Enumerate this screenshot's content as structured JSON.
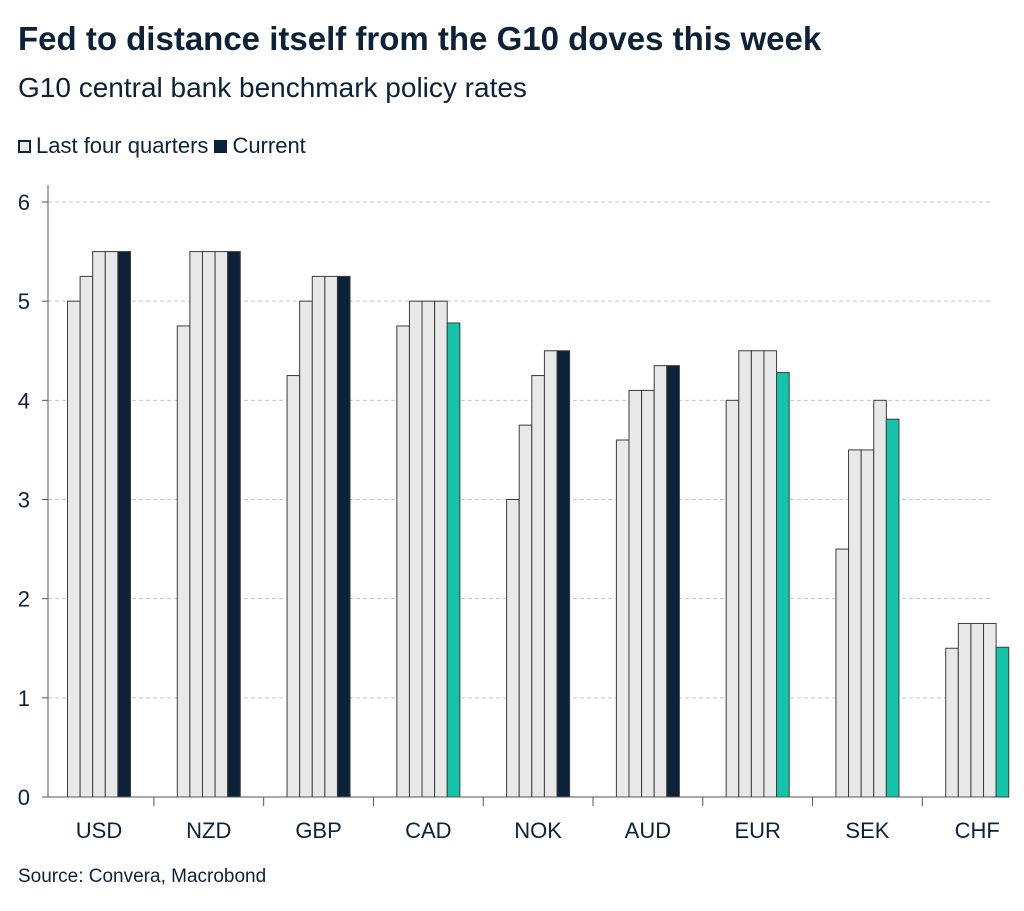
{
  "header": {
    "title": "Fed to distance itself from the G10 doves this week",
    "subtitle": "G10 central bank benchmark policy rates"
  },
  "legend": {
    "last_label": "Last four quarters",
    "current_label": "Current"
  },
  "footer": {
    "source": "Source: Convera, Macrobond"
  },
  "colors": {
    "past_fill": "#e8e8e8",
    "outline": "#3c3c3c",
    "current_dark": "#0b2239",
    "current_teal": "#14c4aa",
    "grid": "#c8c8c8",
    "text": "#0b2239"
  },
  "chart_data": {
    "type": "bar",
    "title": "Fed to distance itself from the G10 doves this week",
    "subtitle": "G10 central bank benchmark policy rates",
    "xlabel": "",
    "ylabel": "",
    "ylim": [
      0,
      6
    ],
    "yticks": [
      0,
      1,
      2,
      3,
      4,
      5,
      6
    ],
    "grid": true,
    "legend_position": "top-left",
    "categories": [
      "USD",
      "NZD",
      "GBP",
      "CAD",
      "NOK",
      "AUD",
      "EUR",
      "SEK",
      "CHF"
    ],
    "series": [
      {
        "name": "Last four quarters (Q-4)",
        "values": [
          5.0,
          4.75,
          4.25,
          4.75,
          3.0,
          3.6,
          4.0,
          2.5,
          1.5
        ]
      },
      {
        "name": "Last four quarters (Q-3)",
        "values": [
          5.25,
          5.5,
          5.0,
          5.0,
          3.75,
          4.1,
          4.5,
          3.5,
          1.75
        ]
      },
      {
        "name": "Last four quarters (Q-2)",
        "values": [
          5.5,
          5.5,
          5.25,
          5.0,
          4.25,
          4.1,
          4.5,
          3.5,
          1.75
        ]
      },
      {
        "name": "Last four quarters (Q-1)",
        "values": [
          5.5,
          5.5,
          5.25,
          5.0,
          4.5,
          4.35,
          4.5,
          4.0,
          1.75
        ]
      },
      {
        "name": "Current",
        "values": [
          5.5,
          5.5,
          5.25,
          4.78,
          4.5,
          4.35,
          4.28,
          3.81,
          1.51
        ]
      }
    ],
    "current_cut": [
      false,
      false,
      false,
      true,
      false,
      false,
      true,
      true,
      true
    ]
  }
}
